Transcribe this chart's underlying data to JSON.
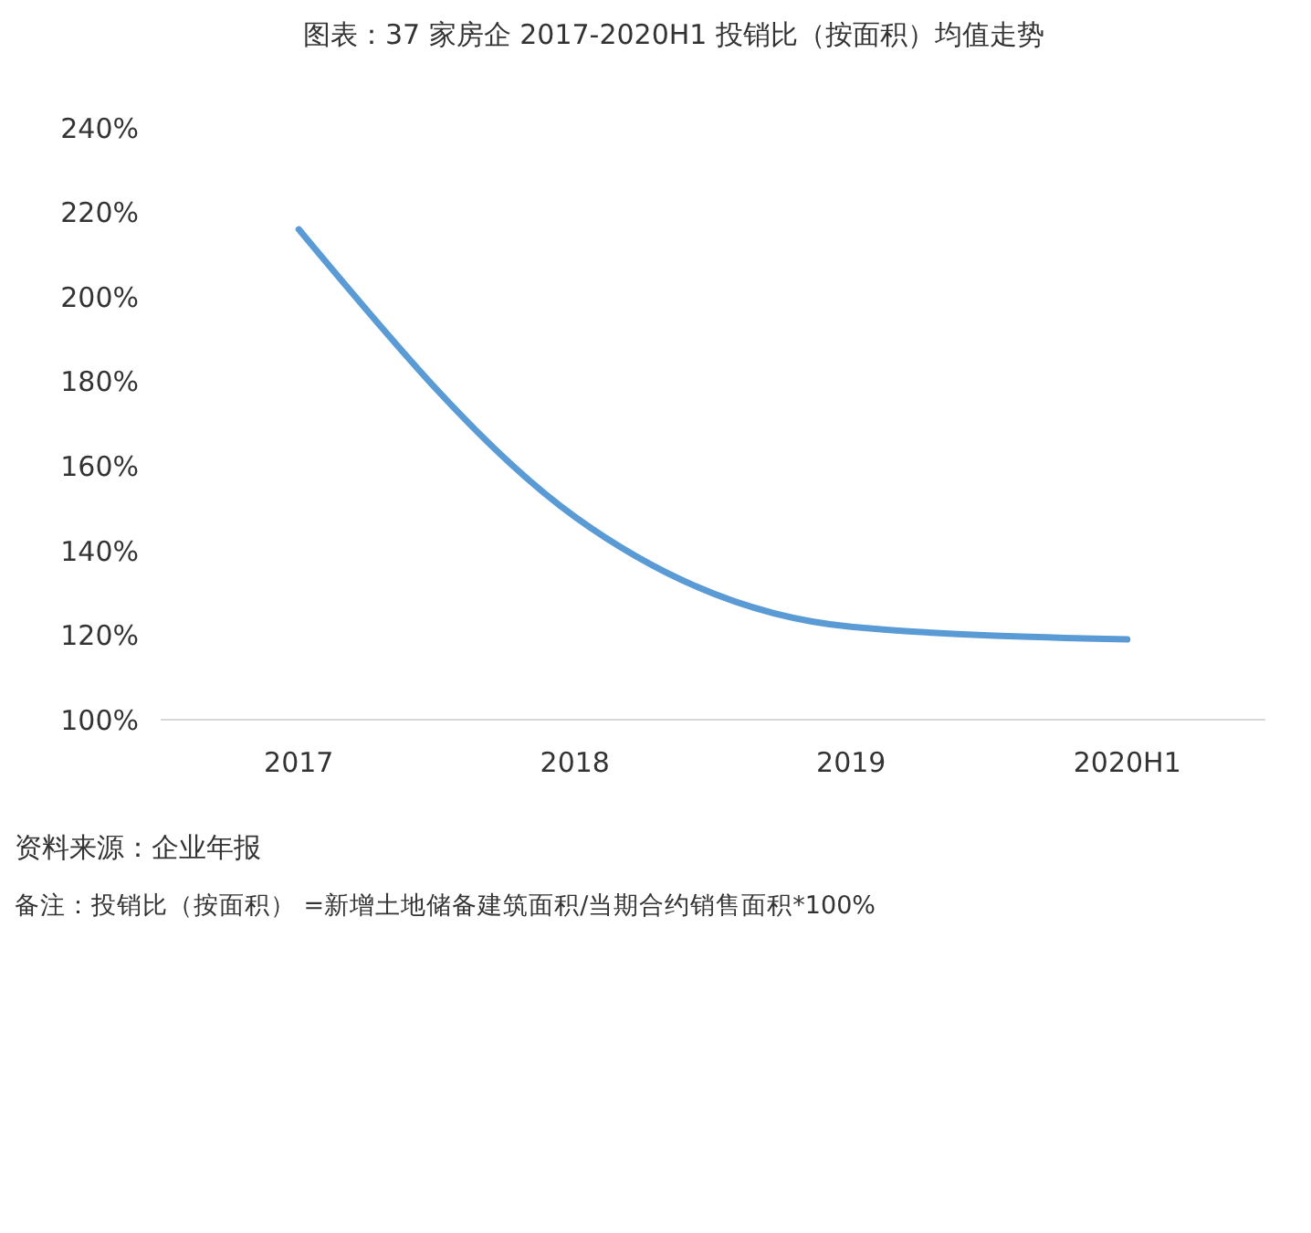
{
  "chart_data": {
    "type": "line",
    "title": "图表：37 家房企 2017-2020H1 投销比（按面积）均值走势",
    "categories": [
      "2017",
      "2018",
      "2019",
      "2020H1"
    ],
    "series": [
      {
        "color": "#5b9bd5",
        "values": [
          216,
          148,
          122,
          119
        ]
      }
    ],
    "ylim": [
      100,
      240
    ],
    "yticks": [
      {
        "value": 100,
        "label": "100%"
      },
      {
        "value": 120,
        "label": "120%"
      },
      {
        "value": 140,
        "label": "140%"
      },
      {
        "value": 160,
        "label": "160%"
      },
      {
        "value": 180,
        "label": "180%"
      },
      {
        "value": 200,
        "label": "200%"
      },
      {
        "value": 220,
        "label": "220%"
      },
      {
        "value": 240,
        "label": "240%"
      }
    ],
    "marker": "none",
    "line_style": "solid",
    "annotations": [
      "资料来源：企业年报",
      "备注：投销比（按面积）  =新增土地储备建筑面积/当期合约销售面积*100%"
    ]
  }
}
